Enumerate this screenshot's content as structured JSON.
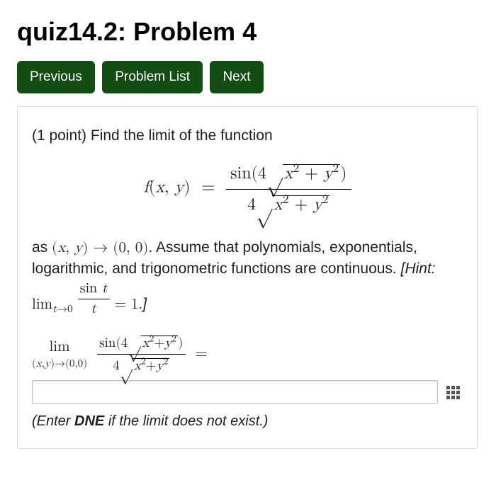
{
  "page": {
    "title_quiz": "quiz14.2:",
    "title_problem": "Problem 4"
  },
  "nav": {
    "prev": "Previous",
    "list": "Problem List",
    "next": "Next",
    "button_bg": "#124d12",
    "button_fg": "#ffffff"
  },
  "problem": {
    "points_label": "(1 point) Find the limit of the function",
    "func_lhs": "f(x, y) = ",
    "func_numerator_prefix": "sin(4",
    "sqrt_expr": "x² + y²",
    "func_numerator_suffix": ")",
    "func_denominator_prefix": "4",
    "as_text_1": "as ",
    "limit_target": "(x, y) → (0, 0)",
    "as_text_2": ". Assume that polynomials, exponentials, logarithmic, and trigonometric functions are continuous. ",
    "hint_open": "[Hint: ",
    "hint_lim": "lim",
    "hint_lim_sub": "t→0",
    "hint_frac_num": "sin t",
    "hint_frac_den": "t",
    "hint_eq": " = 1.",
    "hint_close": "]",
    "answer_lim": "lim",
    "answer_lim_sub": "(x,y)→(0,0)",
    "answer_eq": " = ",
    "enter_note_pre": "(Enter ",
    "enter_note_bold": "DNE",
    "enter_note_post": " if the limit does not exist.)"
  },
  "styles": {
    "box_border": "#d6d6d6",
    "text_color": "#202020",
    "body_bg": "#ffffff",
    "title_fontsize": 36,
    "body_fontsize": 21
  }
}
